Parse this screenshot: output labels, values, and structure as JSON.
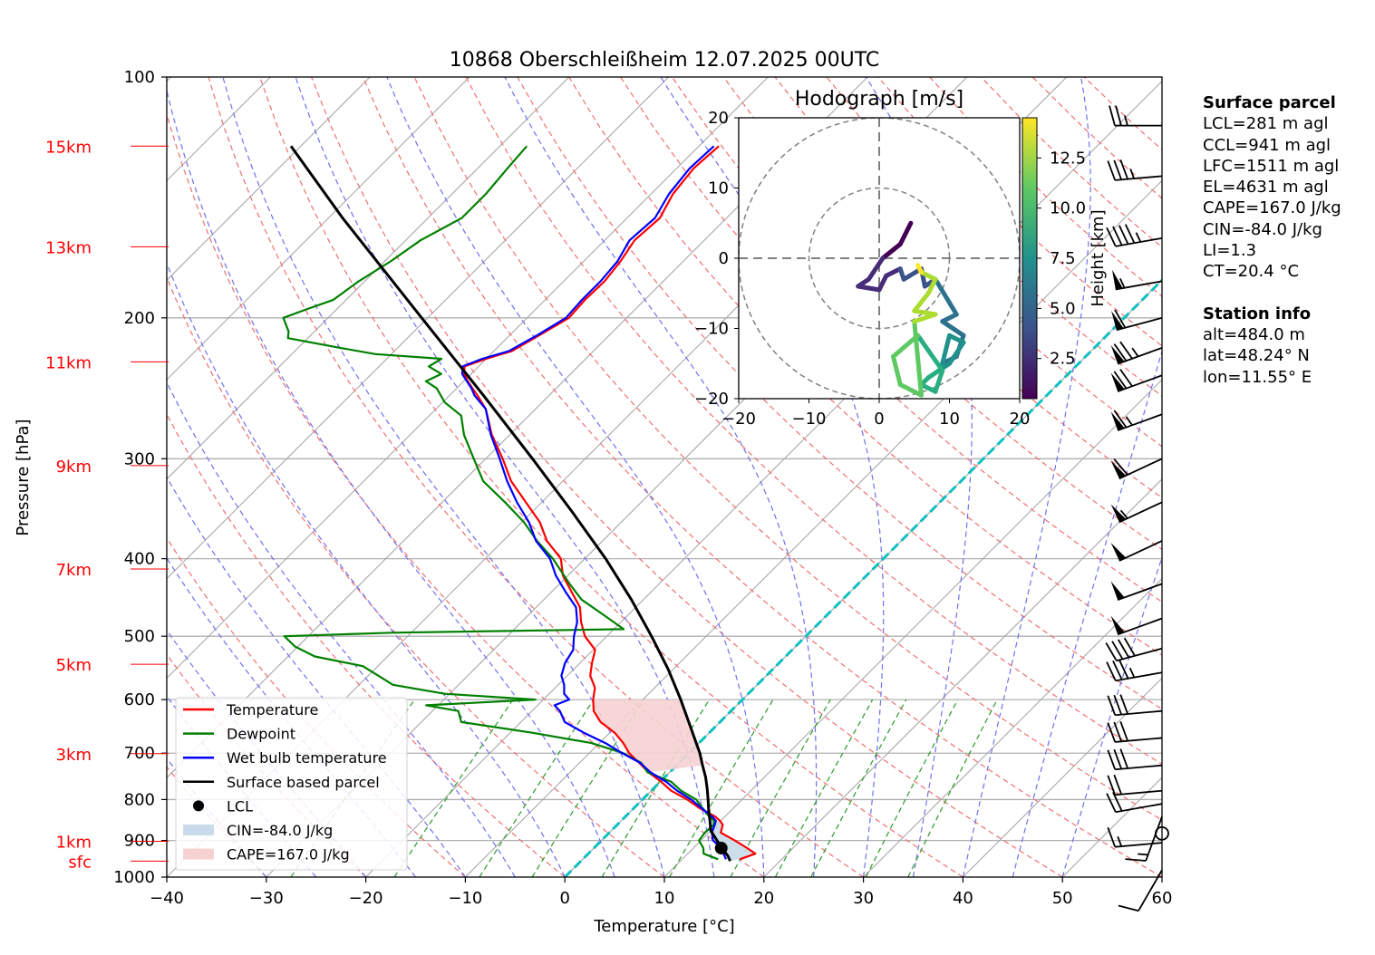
{
  "title": "10868 Oberschleißheim 12.07.2025 00UTC",
  "chart_data": {
    "type": "line",
    "title": "10868 Oberschleißheim 12.07.2025 00UTC",
    "xlabel": "Temperature [°C]",
    "ylabel": "Pressure [hPa]",
    "xlim": [
      -40,
      60
    ],
    "ylim": [
      1000,
      100
    ],
    "x_scale": "skew-T (isotherms skewed 45°)",
    "y_scale": "log",
    "xticks": [
      "−40",
      "−30",
      "−20",
      "−10",
      "0",
      "10",
      "20",
      "30",
      "40",
      "50",
      "60"
    ],
    "yticks": [
      "100",
      "200",
      "300",
      "400",
      "500",
      "600",
      "700",
      "800",
      "900",
      "1000"
    ],
    "height_labels": [
      {
        "label": "sfc",
        "pressure": 955
      },
      {
        "label": "1km",
        "pressure": 902
      },
      {
        "label": "3km",
        "pressure": 701
      },
      {
        "label": "5km",
        "pressure": 542
      },
      {
        "label": "7km",
        "pressure": 412
      },
      {
        "label": "9km",
        "pressure": 306
      },
      {
        "label": "11km",
        "pressure": 227
      },
      {
        "label": "13km",
        "pressure": 163
      },
      {
        "label": "15km",
        "pressure": 122
      }
    ],
    "grid": true,
    "legend_position": "lower-left",
    "series": [
      {
        "name": "Temperature",
        "color": "#ff0000",
        "pressure": [
          950,
          935,
          920,
          900,
          880,
          860,
          850,
          840,
          820,
          800,
          780,
          760,
          740,
          720,
          700,
          680,
          660,
          640,
          620,
          600,
          580,
          560,
          540,
          520,
          500,
          480,
          460,
          440,
          420,
          400,
          380,
          360,
          340,
          320,
          300,
          280,
          260,
          250,
          245,
          240,
          235,
          230,
          225,
          220,
          210,
          200,
          190,
          180,
          170,
          160,
          150,
          140,
          130,
          122
        ],
        "temp": [
          15.8,
          16.8,
          15.4,
          13.4,
          11.2,
          10.6,
          9.9,
          9.0,
          6.6,
          4.5,
          2.0,
          0.1,
          -2.1,
          -4.0,
          -6.0,
          -7.6,
          -9.5,
          -12.0,
          -13.8,
          -15.0,
          -16.0,
          -17.7,
          -18.8,
          -19.8,
          -22.2,
          -24.0,
          -25.6,
          -28.0,
          -30.5,
          -32.4,
          -35.6,
          -38.2,
          -41.6,
          -45.2,
          -48.3,
          -51.8,
          -55.0,
          -57.2,
          -58.4,
          -59.6,
          -60.7,
          -61.4,
          -60.0,
          -58.2,
          -57.0,
          -55.8,
          -56.0,
          -55.9,
          -56.3,
          -57.0,
          -56.7,
          -57.8,
          -58.3,
          -58.0
        ]
      },
      {
        "name": "Dewpoint",
        "color": "#008000",
        "pressure": [
          950,
          935,
          920,
          900,
          880,
          860,
          850,
          840,
          820,
          800,
          780,
          760,
          740,
          720,
          700,
          680,
          660,
          640,
          620,
          610,
          600,
          590,
          575,
          560,
          545,
          530,
          515,
          500,
          495,
          490,
          470,
          450,
          430,
          400,
          380,
          360,
          340,
          320,
          300,
          280,
          265,
          255,
          245,
          240,
          235,
          230,
          225,
          222,
          218,
          212,
          208,
          200,
          195,
          190,
          180,
          170,
          160,
          150,
          140,
          130,
          122
        ],
        "temp": [
          13.6,
          11.6,
          11.0,
          9.8,
          9.6,
          9.7,
          9.3,
          8.4,
          6.9,
          5.4,
          3.0,
          1.1,
          -2.2,
          -3.8,
          -6.6,
          -10.8,
          -17.8,
          -26.0,
          -27.4,
          -31.2,
          -20.8,
          -30.5,
          -36.6,
          -39.0,
          -41.5,
          -47.3,
          -50.3,
          -52.4,
          -42.0,
          -19.0,
          -22.5,
          -26.2,
          -29.0,
          -33.2,
          -36.6,
          -39.8,
          -43.7,
          -48.0,
          -51.2,
          -54.6,
          -56.8,
          -59.8,
          -62.0,
          -63.8,
          -63.0,
          -65.0,
          -64.5,
          -71.6,
          -75.8,
          -82.0,
          -82.6,
          -84.5,
          -83.0,
          -81.3,
          -80.6,
          -79.4,
          -78.5,
          -76.6,
          -76.6,
          -77.0,
          -77.3
        ]
      },
      {
        "name": "Wet bulb temperature",
        "color": "#0000ff",
        "pressure": [
          950,
          935,
          920,
          900,
          880,
          860,
          850,
          840,
          820,
          800,
          780,
          760,
          740,
          720,
          700,
          680,
          660,
          640,
          620,
          610,
          600,
          590,
          575,
          560,
          540,
          520,
          500,
          480,
          460,
          440,
          420,
          400,
          380,
          360,
          340,
          320,
          300,
          280,
          260,
          250,
          245,
          240,
          235,
          230,
          225,
          220,
          210,
          200,
          190,
          180,
          170,
          160,
          150,
          140,
          130,
          122
        ],
        "temp": [
          14.4,
          13.6,
          12.8,
          11.2,
          10.3,
          9.8,
          9.5,
          8.7,
          6.8,
          4.9,
          2.6,
          0.6,
          -1.9,
          -3.9,
          -6.7,
          -9.4,
          -12.6,
          -15.6,
          -17.2,
          -18.3,
          -17.4,
          -18.5,
          -19.4,
          -20.6,
          -21.5,
          -22.0,
          -23.3,
          -24.4,
          -26.0,
          -28.6,
          -31.2,
          -33.5,
          -36.7,
          -39.3,
          -42.5,
          -45.6,
          -48.6,
          -51.9,
          -55.0,
          -57.5,
          -58.5,
          -59.7,
          -60.9,
          -61.6,
          -60.4,
          -58.5,
          -57.2,
          -56.1,
          -56.3,
          -56.3,
          -56.6,
          -57.5,
          -57.2,
          -58.2,
          -58.7,
          -58.5
        ]
      },
      {
        "name": "Surface based parcel",
        "color": "#000000",
        "pressure": [
          955,
          940,
          925,
          900,
          875,
          850,
          820,
          800,
          775,
          750,
          725,
          700,
          650,
          600,
          550,
          500,
          450,
          400,
          350,
          300,
          250,
          200,
          150,
          122
        ],
        "temp": [
          15.0,
          14.2,
          13.2,
          11.6,
          10.0,
          8.9,
          7.5,
          6.6,
          5.4,
          4.1,
          2.6,
          1.1,
          -2.4,
          -6.2,
          -10.5,
          -15.5,
          -21.2,
          -27.9,
          -35.9,
          -45.3,
          -56.6,
          -70.6,
          -88.6,
          -101.0
        ]
      }
    ],
    "lcl": {
      "pressure": 920,
      "temp": 12.8
    },
    "cin_shading": {
      "label": "CIN=-84.0 J/kg",
      "color": "#c9dbea"
    },
    "cape_shading": {
      "label": "CAPE=167.0 J/kg",
      "color": "#f6d2d3"
    },
    "wind_barbs": {
      "pressure": [
        980,
        906,
        882,
        840,
        810,
        780,
        725,
        670,
        620,
        555,
        518,
        475,
        430,
        380,
        340,
        300,
        264,
        236,
        218,
        200,
        180,
        159,
        133,
        115
      ],
      "speed_kt": [
        10,
        15,
        0,
        15,
        20,
        20,
        30,
        30,
        30,
        35,
        40,
        50,
        50,
        50,
        55,
        60,
        65,
        70,
        75,
        60,
        55,
        45,
        35,
        25
      ],
      "direction_deg": [
        210,
        265,
        0,
        200,
        260,
        265,
        265,
        265,
        265,
        260,
        255,
        250,
        250,
        245,
        245,
        245,
        250,
        250,
        250,
        255,
        260,
        260,
        265,
        270
      ]
    },
    "hodograph": {
      "title": "Hodograph [m/s]",
      "xlim": [
        -20,
        20
      ],
      "ylim": [
        -20,
        20
      ],
      "ticks": [
        "−20",
        "−10",
        "0",
        "10",
        "20"
      ],
      "rings": [
        10,
        20
      ],
      "colorbar_label": "Height [km]",
      "colorbar_ticks": [
        "2.5",
        "5.0",
        "7.5",
        "10.0",
        "12.5"
      ],
      "height_km": [
        0.5,
        0.8,
        1.2,
        1.5,
        1.8,
        2.2,
        2.6,
        3.0,
        3.4,
        3.8,
        4.2,
        4.6,
        5.0,
        5.4,
        5.8,
        6.2,
        6.6,
        7.0,
        7.4,
        7.8,
        8.2,
        8.6,
        9.0,
        9.4,
        9.8,
        10.2,
        10.6,
        11.0,
        11.4,
        11.8,
        12.2,
        12.6,
        13.0,
        13.4,
        13.8,
        14.2
      ],
      "u": [
        4.5,
        3.0,
        0.5,
        -1.5,
        -3.0,
        0.0,
        1.0,
        3.0,
        3.5,
        6.0,
        6.5,
        8.0,
        11.0,
        9.0,
        12.0,
        11.0,
        9.0,
        10.0,
        12.0,
        10.0,
        8.5,
        7.0,
        6.0,
        8.0,
        9.0,
        5.5,
        2.0,
        3.0,
        6.0,
        5.0,
        8.0,
        5.0,
        7.0,
        8.0,
        6.0,
        5.5
      ],
      "v": [
        5.0,
        2.0,
        0.0,
        -3.0,
        -4.0,
        -4.5,
        -2.5,
        -1.5,
        -3.0,
        -1.5,
        -4.0,
        -3.0,
        -8.0,
        -9.0,
        -11.0,
        -14.0,
        -15.0,
        -11.0,
        -12.0,
        -15.0,
        -16.0,
        -17.0,
        -18.0,
        -19.0,
        -16.0,
        -11.0,
        -14.0,
        -18.0,
        -19.5,
        -9.0,
        -8.0,
        -7.5,
        -5.0,
        -3.0,
        -2.0,
        -1.0
      ]
    }
  },
  "legend": [
    {
      "label": "Temperature",
      "kind": "line",
      "color": "#ff0000"
    },
    {
      "label": "Dewpoint",
      "kind": "line",
      "color": "#008000"
    },
    {
      "label": "Wet bulb temperature",
      "kind": "line",
      "color": "#0000ff"
    },
    {
      "label": "Surface based parcel",
      "kind": "line",
      "color": "#000000"
    },
    {
      "label": "LCL",
      "kind": "dot",
      "color": "#000000"
    },
    {
      "label": "CIN=-84.0 J/kg",
      "kind": "patch",
      "color": "#c9dbea"
    },
    {
      "label": "CAPE=167.0 J/kg",
      "kind": "patch",
      "color": "#f6d2d3"
    }
  ],
  "surface_parcel": {
    "header": "Surface parcel",
    "lines": [
      "LCL=281 m agl",
      "CCL=941 m agl",
      "LFC=1511 m agl",
      "EL=4631 m agl",
      "CAPE=167.0 J/kg",
      "CIN=-84.0 J/kg",
      "LI=1.3",
      "CT=20.4 °C"
    ]
  },
  "station_info": {
    "header": "Station info",
    "lines": [
      "alt=484.0 m",
      "lat=48.24° N",
      "lon=11.55° E"
    ]
  }
}
